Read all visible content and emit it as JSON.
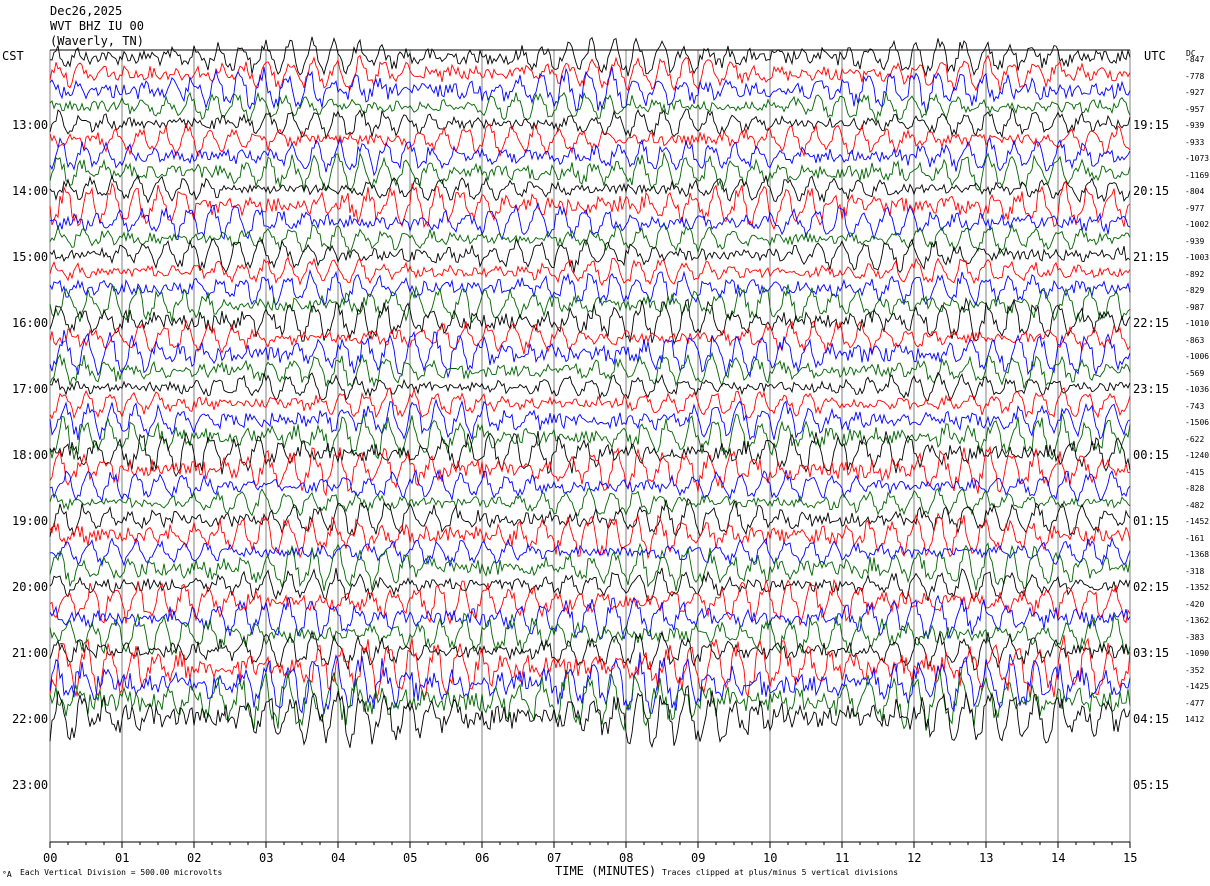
{
  "header": {
    "date": "Dec26,2025",
    "station": "WVT BHZ IU 00",
    "location": "(Waverly, TN)"
  },
  "left_tz": "CST",
  "right_tz": "UTC",
  "dc_label": "DC",
  "footer": {
    "scale": "Each Vertical Division =  500.00 microvolts",
    "xlabel": "TIME (MINUTES)",
    "clip": "Traces clipped at plus/minus 5 vertical divisions",
    "corner": "°A"
  },
  "colors": {
    "black": "#000000",
    "red": "#ff0000",
    "blue": "#0000ff",
    "green": "#006400",
    "grid": "#808080"
  },
  "chart_data": {
    "type": "line",
    "title": "Dec26,2025 WVT BHZ IU 00 (Waverly, TN)",
    "xlabel": "TIME (MINUTES)",
    "xlim": [
      0,
      15
    ],
    "x_ticks": [
      "00",
      "01",
      "02",
      "03",
      "04",
      "05",
      "06",
      "07",
      "08",
      "09",
      "10",
      "11",
      "12",
      "13",
      "14",
      "15"
    ],
    "left_time_labels": [
      "13:00",
      "14:00",
      "15:00",
      "16:00",
      "17:00",
      "18:00",
      "19:00",
      "20:00",
      "21:00",
      "22:00",
      "23:00"
    ],
    "right_time_labels": [
      "19:15",
      "20:15",
      "21:15",
      "22:15",
      "23:15",
      "00:15",
      "01:15",
      "02:15",
      "03:15",
      "04:15",
      "05:15"
    ],
    "trace_colors": [
      "#000000",
      "#ff0000",
      "#0000ff",
      "#006400"
    ],
    "dc_offsets": [
      "-847",
      "-778",
      "-927",
      "-957",
      "-939",
      "-933",
      "-1073",
      "-1169",
      "-804",
      "-977",
      "-1002",
      "-939",
      "-1003",
      "-892",
      "-829",
      "-987",
      "-1010",
      "-863",
      "-1006",
      "-569",
      "-1036",
      "-743",
      "-1506",
      "-622",
      "-1240",
      "-415",
      "-828",
      "-482",
      "-1452",
      "-161",
      "-1368",
      "-318",
      "-1352",
      "-420",
      "-1362",
      "-383",
      "-1090",
      "-352",
      "-1425",
      "-477",
      "1412"
    ],
    "vertical_division_microvolts": 500.0,
    "clip_divisions": 5
  }
}
